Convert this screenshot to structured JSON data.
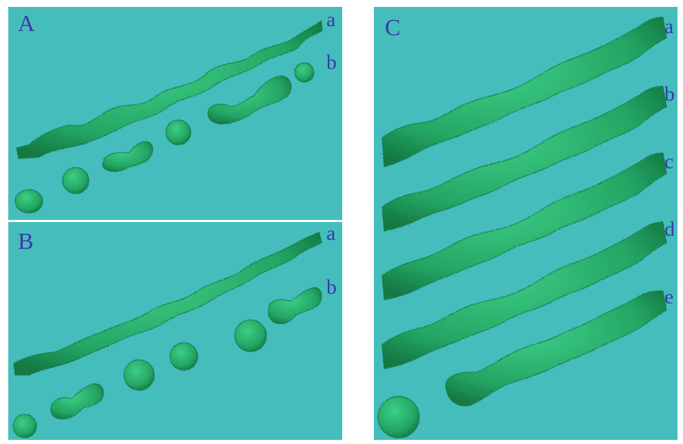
{
  "panels": {
    "A": {
      "label": "A",
      "rows": [
        "a",
        "b"
      ]
    },
    "B": {
      "label": "B",
      "rows": [
        "a",
        "b"
      ]
    },
    "C": {
      "label": "C",
      "rows": [
        "a",
        "b",
        "c",
        "d",
        "e"
      ]
    }
  },
  "colors": {
    "background": "#45bdbd",
    "filament": "#2aa86a",
    "filament_dark": "#147a45",
    "label": "#3a3aa6"
  }
}
